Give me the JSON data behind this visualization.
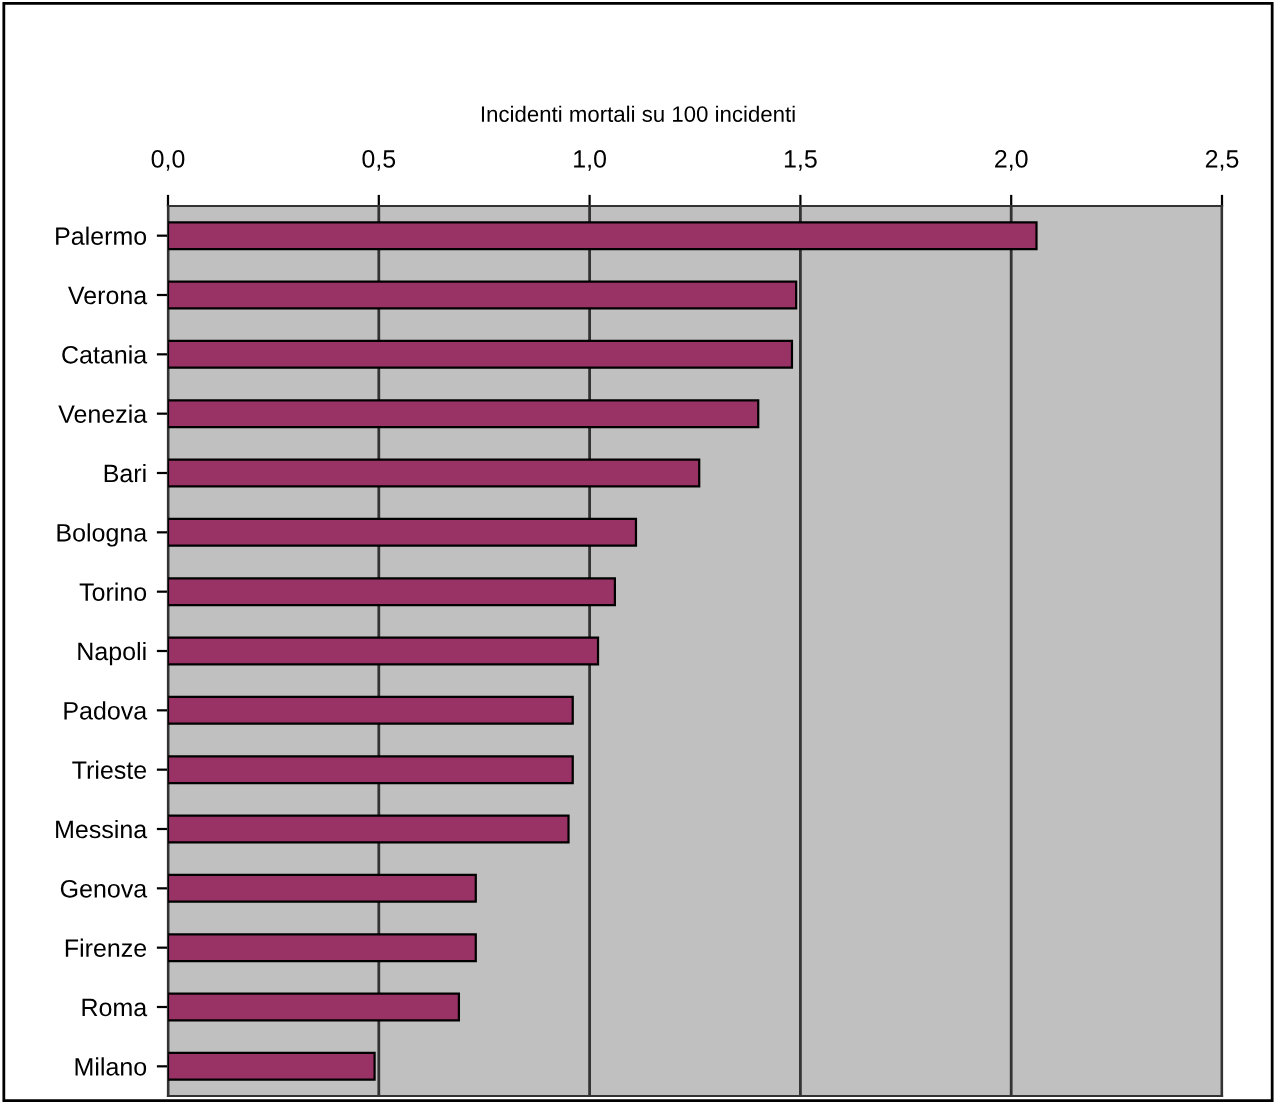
{
  "chart_data": {
    "type": "bar",
    "orientation": "horizontal",
    "title": "Incidenti mortali su 100 incidenti",
    "categories": [
      "Palermo",
      "Verona",
      "Catania",
      "Venezia",
      "Bari",
      "Bologna",
      "Torino",
      "Napoli",
      "Padova",
      "Trieste",
      "Messina",
      "Genova",
      "Firenze",
      "Roma",
      "Milano"
    ],
    "values": [
      2.06,
      1.49,
      1.48,
      1.4,
      1.26,
      1.11,
      1.06,
      1.02,
      0.96,
      0.96,
      0.95,
      0.73,
      0.73,
      0.69,
      0.49
    ],
    "color": "#993366",
    "xlim": [
      0,
      2.5
    ],
    "xticks": [
      {
        "value": 0,
        "label": "0,0"
      },
      {
        "value": 0.5,
        "label": "0,5"
      },
      {
        "value": 1.0,
        "label": "1,0"
      },
      {
        "value": 1.5,
        "label": "1,5"
      },
      {
        "value": 2.0,
        "label": "2,0"
      },
      {
        "value": 2.5,
        "label": "2,5"
      }
    ],
    "grid": "x"
  }
}
